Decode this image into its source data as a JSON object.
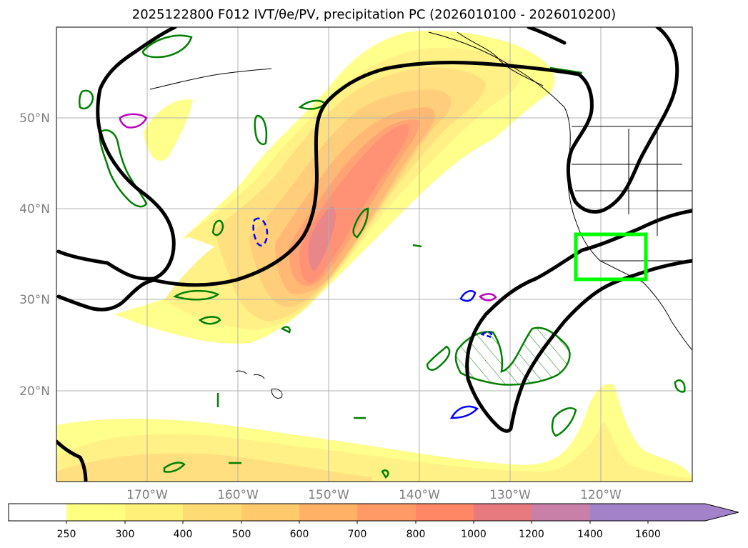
{
  "title": "2025122800 F012 IVT/θe/PV, precipitation PC (2026010100 - 2026010200)",
  "colors": {
    "ivt_levels": [
      "#ffff80",
      "#fff07a",
      "#ffdc73",
      "#ffc96c",
      "#ffb266",
      "#ff9a66",
      "#ff8766",
      "#e77a7e",
      "#c87fa8",
      "#a482c9"
    ],
    "theta_contour": "#000000",
    "pv_positive": "#008000",
    "pv_negative": "#0000ff",
    "pv_high": "#c000c0",
    "region_box": "#00ff00",
    "gridline": "#b0b0b0",
    "coastline": "#000000"
  },
  "map": {
    "lat_labels": [
      "50°N",
      "40°N",
      "30°N",
      "20°N"
    ],
    "lon_labels": [
      "170°W",
      "160°W",
      "150°W",
      "140°W",
      "130°W",
      "120°W"
    ]
  },
  "colorbar": {
    "tick_labels": [
      "250",
      "300",
      "400",
      "500",
      "600",
      "700",
      "800",
      "1000",
      "1200",
      "1400",
      "1600"
    ]
  }
}
